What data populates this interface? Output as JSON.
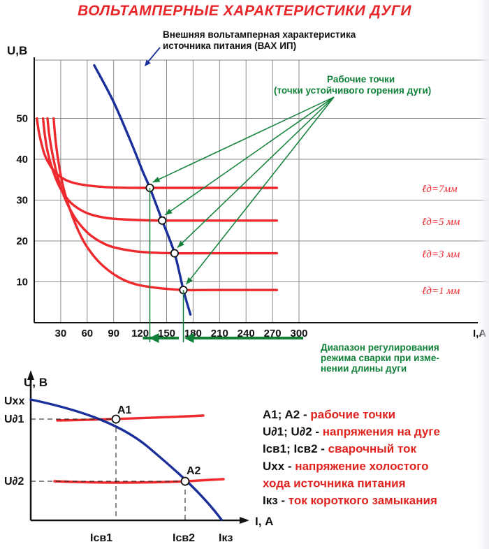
{
  "title": "ВОЛЬТАМПЕРНЫЕ ХАРАКТЕРИСТИКИ ДУГИ",
  "colors": {
    "grid": "#8a8a8a",
    "axis": "#111111",
    "arc": "#ee2a2f",
    "source": "#1a2f9a",
    "annot": "#11813a",
    "legend": "#e0231f"
  },
  "chart_data": [
    {
      "type": "line",
      "ylabel": "U,В",
      "xlabel": "I,А",
      "xlim": [
        0,
        310
      ],
      "ylim": [
        0,
        63
      ],
      "xticks": [
        30,
        60,
        90,
        120,
        150,
        180,
        210,
        240,
        270,
        300
      ],
      "yticks": [
        10,
        20,
        30,
        40,
        50
      ],
      "grid": true,
      "source_curve": {
        "label_line1": "Внешняя вольтамперная характеристика",
        "label_line2": "источника питания (ВАХ ИП)",
        "points": [
          [
            68,
            63
          ],
          [
            90,
            54
          ],
          [
            110,
            44
          ],
          [
            123,
            37
          ],
          [
            131,
            33
          ],
          [
            145,
            25
          ],
          [
            159,
            17
          ],
          [
            169,
            8
          ],
          [
            177,
            2
          ]
        ]
      },
      "arc_series": [
        {
          "name": "ℓд=7мм",
          "plateau": 33,
          "x": [
            3,
            5,
            8,
            12,
            18,
            25,
            35,
            45,
            60,
            80,
            100,
            120,
            150,
            200,
            275
          ],
          "y": [
            50,
            47,
            44,
            41,
            38.5,
            36.5,
            35,
            34.2,
            33.6,
            33.2,
            33.05,
            33,
            33,
            33,
            33
          ]
        },
        {
          "name": "ℓд=5 мм",
          "plateau": 25,
          "x": [
            10,
            12,
            15,
            20,
            27,
            35,
            45,
            60,
            80,
            100,
            130,
            150,
            200,
            275
          ],
          "y": [
            50,
            46,
            42,
            38,
            34,
            31,
            28.7,
            26.8,
            25.7,
            25.3,
            25.05,
            25,
            25,
            25
          ]
        },
        {
          "name": "ℓд=3 мм",
          "plateau": 17,
          "x": [
            15,
            17,
            20,
            25,
            32,
            40,
            50,
            65,
            85,
            110,
            130,
            160,
            200,
            275
          ],
          "y": [
            50,
            46,
            42,
            37,
            32,
            28,
            24.5,
            21.2,
            18.8,
            17.6,
            17.2,
            17,
            17,
            17
          ]
        },
        {
          "name": "ℓд=1 мм",
          "plateau": 8,
          "x": [
            22,
            24,
            27,
            32,
            40,
            50,
            60,
            75,
            95,
            115,
            140,
            170,
            200,
            275
          ],
          "y": [
            50,
            45,
            40,
            34,
            28,
            22.5,
            18.5,
            14.5,
            11.2,
            9.4,
            8.5,
            8,
            8,
            8
          ]
        }
      ],
      "working_points": [
        [
          131,
          33
        ],
        [
          145,
          25
        ],
        [
          159,
          17
        ],
        [
          169,
          8
        ]
      ],
      "working_label_line1": "Рабочие точки",
      "working_label_line2": "(точки устойчивого горения дуги)",
      "range": {
        "from": 131,
        "to": 169
      },
      "range_label": [
        "Диапазон регулирования",
        "режима сварки при изме-",
        "нении длины дуги"
      ]
    },
    {
      "type": "line",
      "ylabel": "U, В",
      "xlabel": "I, А",
      "y_labels": [
        "Uxx",
        "U∂1",
        "U∂2"
      ],
      "x_labels": [
        "Iсв1",
        "Iсв2",
        "Iкз"
      ],
      "point_labels": [
        "A1",
        "A2"
      ],
      "source_curve": {
        "from": "Uxx",
        "to": "Iкз"
      },
      "arc_lines": [
        {
          "name": "U∂1"
        },
        {
          "name": "U∂2"
        }
      ],
      "working_points": [
        {
          "label": "A1",
          "u": "U∂1",
          "i": "Iсв1"
        },
        {
          "label": "A2",
          "u": "U∂2",
          "i": "Iсв2"
        }
      ]
    }
  ],
  "legend": [
    {
      "key": "A1; A2 -",
      "text": "рабочие точки"
    },
    {
      "key": "U∂1; U∂2 -",
      "text": "напряжения на дуге"
    },
    {
      "key": "Iсв1; Iсв2 -",
      "text": "сварочный ток"
    },
    {
      "key": "Uxx -",
      "text": "напряжение холостого"
    },
    {
      "key": "",
      "text": "хода источника питания"
    },
    {
      "key": "Iкз -",
      "text": "ток короткого замыкания"
    }
  ]
}
